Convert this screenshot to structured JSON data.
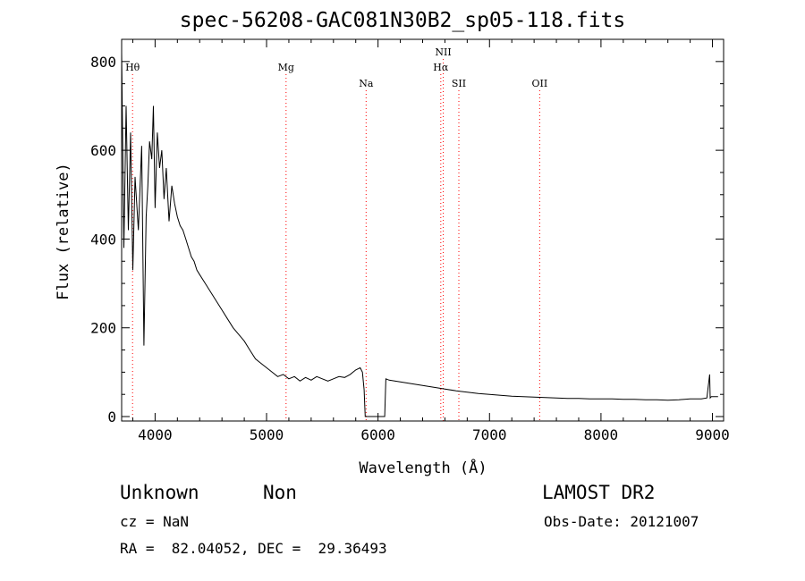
{
  "chart_data": {
    "type": "line",
    "title": "spec-56208-GAC081N30B2_sp05-118.fits",
    "xlabel": "Wavelength (Å)",
    "ylabel": "Flux (relative)",
    "xlim": [
      3700,
      9100
    ],
    "ylim": [
      -10,
      850
    ],
    "x_ticks": [
      4000,
      5000,
      6000,
      7000,
      8000,
      9000
    ],
    "y_ticks": [
      0,
      200,
      400,
      600,
      800
    ],
    "grid": false,
    "line_color": "#000000",
    "marker_color": "#ff0000",
    "series": [
      {
        "x": [
          3700,
          3720,
          3740,
          3760,
          3780,
          3800,
          3820,
          3850,
          3880,
          3900,
          3920,
          3935,
          3950,
          3970,
          3985,
          4000,
          4020,
          4040,
          4060,
          4080,
          4100,
          4125,
          4150,
          4175,
          4200,
          4225,
          4250,
          4275,
          4300,
          4325,
          4350,
          4375,
          4400,
          4450,
          4500,
          4550,
          4600,
          4650,
          4700,
          4750,
          4800,
          4850,
          4900,
          4950,
          5000,
          5050,
          5100,
          5150,
          5200,
          5250,
          5300,
          5350,
          5400,
          5450,
          5500,
          5550,
          5600,
          5650,
          5700,
          5750,
          5800,
          5840,
          5860,
          5875,
          5885,
          5890,
          6050,
          6060,
          6070,
          6100,
          6150,
          6200,
          6300,
          6400,
          6500,
          6600,
          6700,
          6800,
          6900,
          7000,
          7100,
          7200,
          7300,
          7400,
          7500,
          7600,
          7700,
          7800,
          7900,
          8000,
          8100,
          8200,
          8300,
          8400,
          8500,
          8600,
          8700,
          8800,
          8900,
          8950,
          8975,
          8980,
          8990,
          9000,
          9050
        ],
        "y": [
          820,
          380,
          700,
          420,
          640,
          330,
          540,
          420,
          610,
          160,
          450,
          520,
          620,
          580,
          700,
          470,
          640,
          560,
          600,
          490,
          560,
          440,
          520,
          480,
          450,
          430,
          420,
          400,
          380,
          360,
          350,
          330,
          320,
          300,
          280,
          260,
          240,
          220,
          200,
          185,
          170,
          150,
          130,
          120,
          110,
          100,
          90,
          95,
          85,
          90,
          80,
          88,
          82,
          90,
          85,
          80,
          85,
          90,
          88,
          95,
          105,
          110,
          100,
          60,
          0,
          0,
          0,
          0,
          85,
          82,
          80,
          78,
          74,
          70,
          66,
          62,
          58,
          55,
          52,
          50,
          48,
          46,
          45,
          44,
          43,
          42,
          41,
          41,
          40,
          40,
          40,
          39,
          39,
          38,
          38,
          37,
          38,
          40,
          40,
          42,
          95,
          42,
          45,
          45,
          45
        ]
      }
    ],
    "lines": [
      {
        "label": "Hθ",
        "x": 3798,
        "row": 1
      },
      {
        "label": "Mg",
        "x": 5175,
        "row": 1
      },
      {
        "label": "Na",
        "x": 5893,
        "row": 2
      },
      {
        "label": "NII",
        "x": 6585,
        "row": 0
      },
      {
        "label": "Hα",
        "x": 6563,
        "row": 1
      },
      {
        "label": "SII",
        "x": 6725,
        "row": 2
      },
      {
        "label": "OII",
        "x": 7450,
        "row": 2
      }
    ]
  },
  "footer": {
    "class_label": "Unknown",
    "subclass_label": "Non",
    "survey": "LAMOST DR2",
    "cz": "cz = NaN",
    "obs_date": "Obs-Date: 20121007",
    "coords": "RA =  82.04052, DEC =  29.36493"
  }
}
